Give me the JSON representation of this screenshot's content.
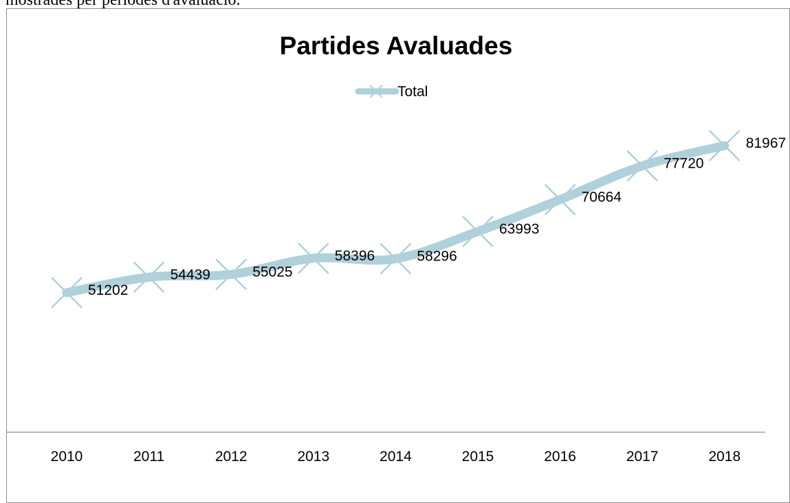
{
  "document": {
    "text_above_chart": "mostrades per períodes d'avaluació."
  },
  "chart_data": {
    "type": "line",
    "title": "Partides Avaluades",
    "xlabel": "",
    "ylabel": "",
    "categories": [
      "2010",
      "2011",
      "2012",
      "2013",
      "2014",
      "2015",
      "2016",
      "2017",
      "2018"
    ],
    "series": [
      {
        "name": "Total",
        "values": [
          51202,
          54439,
          55025,
          58396,
          58296,
          63993,
          70664,
          77720,
          81967
        ],
        "color": "#b0d0da",
        "marker": "x"
      }
    ],
    "ylim": [
      22000,
      90000
    ],
    "grid": false,
    "legend": "top-center",
    "data_labels": true,
    "y_axis_visible": false
  }
}
